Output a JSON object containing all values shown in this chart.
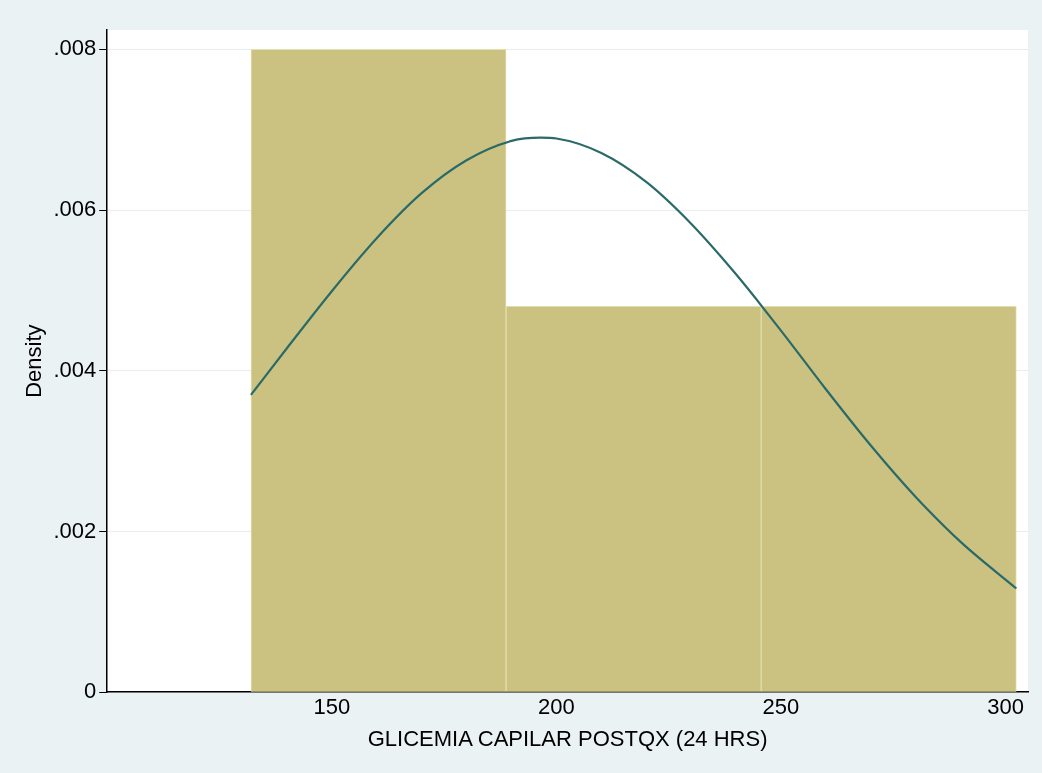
{
  "chart_data": {
    "type": "histogram",
    "xlabel": "GLICEMIA CAPILAR POSTQX (24 HRS)",
    "ylabel": "Density",
    "bins": [
      132,
      188.8,
      245.6,
      302.4
    ],
    "values": [
      0.008,
      0.0048,
      0.0048
    ],
    "color": "#cbc281",
    "series": [
      {
        "type": "line",
        "color": "#2a6a68",
        "marker": "none",
        "x": [
          132,
          140,
          150,
          160,
          170,
          180,
          190,
          196.5,
          200,
          210,
          220,
          230,
          240,
          250,
          260,
          270,
          280,
          290,
          302.4
        ],
        "values": [
          0.0037,
          0.00428,
          0.00499,
          0.00565,
          0.00621,
          0.00662,
          0.00686,
          0.0069,
          0.00689,
          0.00671,
          0.00635,
          0.00583,
          0.0052,
          0.0045,
          0.00377,
          0.00307,
          0.00243,
          0.00187,
          0.00129
        ]
      }
    ],
    "xlim": [
      100,
      305
    ],
    "xticks": [
      150,
      200,
      250,
      300
    ],
    "ylim": [
      0,
      0.00824
    ],
    "yticks": [
      0,
      {
        "value": 0.002,
        "label": ".002"
      },
      {
        "value": 0.004,
        "label": ".004"
      },
      {
        "value": 0.006,
        "label": ".006"
      },
      {
        "value": 0.008,
        "label": ".008"
      }
    ],
    "grid": "y",
    "legend": false
  }
}
